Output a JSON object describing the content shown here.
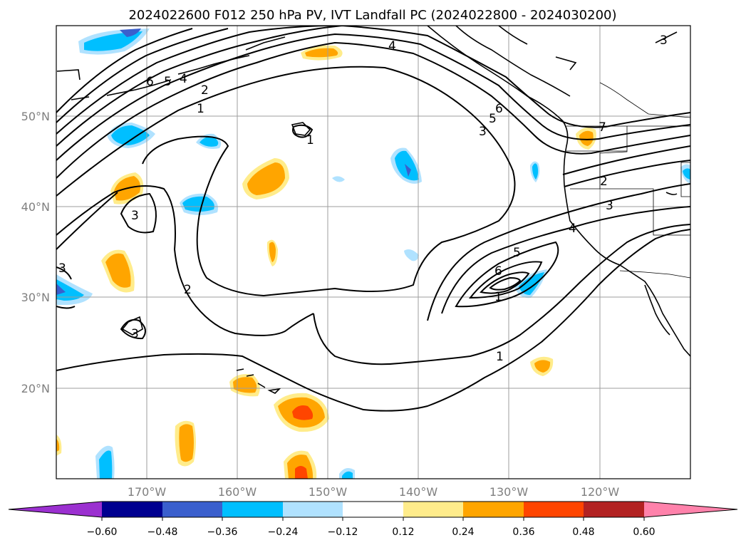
{
  "map": {
    "title": "2024022600 F012 250 hPa PV, IVT Landfall PC (2024022800 - 2024030200)",
    "lon_ticks": [
      "170°W",
      "160°W",
      "150°W",
      "140°W",
      "130°W",
      "120°W"
    ],
    "lat_ticks": [
      "50°N",
      "40°N",
      "30°N",
      "20°N"
    ],
    "colorbar": {
      "tick_labels": [
        "−0.60",
        "−0.48",
        "−0.36",
        "−0.24",
        "−0.12",
        "0.12",
        "0.24",
        "0.36",
        "0.48",
        "0.60"
      ],
      "colors": [
        "#9b30d0",
        "#000090",
        "#3a5fcd",
        "#00bfff",
        "#b0e2ff",
        "#ffffff",
        "#ffec8b",
        "#ffa500",
        "#ff4500",
        "#b22222",
        "#ff82ab"
      ]
    },
    "contour_labels": [
      "6",
      "5",
      "4",
      "2",
      "1",
      "1",
      "4",
      "6",
      "5",
      "3",
      "7",
      "2",
      "3",
      "4",
      "3",
      "2",
      "3",
      "3",
      "6",
      "5",
      "1",
      "1",
      "3"
    ],
    "colors": {
      "neg_light": "#b0e2ff",
      "neg_mid": "#00bfff",
      "neg_dark": "#3a5fcd",
      "pos_light": "#ffec8b",
      "pos_mid": "#ffa500",
      "pos_dark": "#ff4500"
    }
  }
}
